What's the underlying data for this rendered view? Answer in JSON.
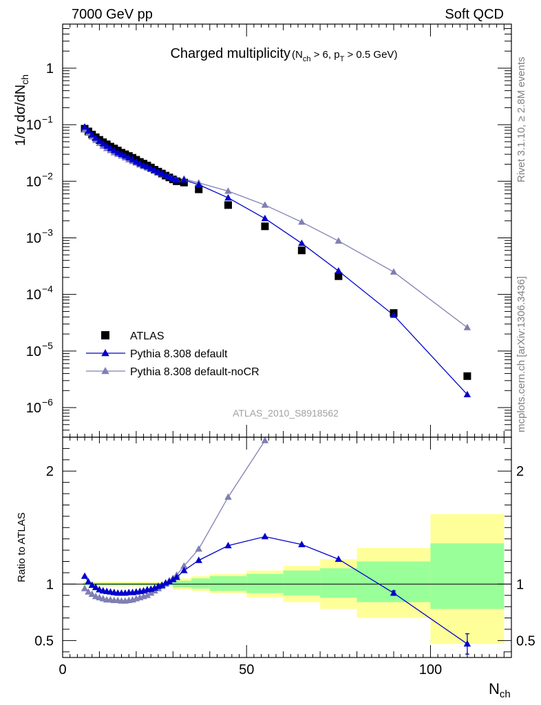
{
  "header": {
    "left": "7000 GeV pp",
    "right": "Soft QCD"
  },
  "side_labels": {
    "top": "Rivet 3.1.10, ≥ 2.8M events",
    "bottom": "mcplots.cern.ch [arXiv:1306.3436]"
  },
  "analysis_id": "ATLAS_2010_S8918562",
  "colors": {
    "atlas": "#000000",
    "default": "#0000cc",
    "nocr": "#7f7fb3",
    "band_inner": "#99ff99",
    "band_outer": "#ffff99"
  },
  "chart_data": [
    {
      "type": "scatter",
      "panel": "main",
      "title": "Charged multiplicity",
      "title_cuts": "(N_ch > 6, p_T > 0.5 GeV)",
      "xlabel": "N_ch",
      "ylabel": "1/σ dσ/dN_ch",
      "xlim": [
        0,
        122
      ],
      "ylim": [
        3e-07,
        6
      ],
      "yscale": "log",
      "x_ticks": [
        0,
        50,
        100
      ],
      "y_ticks": [
        {
          "value": 1e-06,
          "label": "10",
          "exp": "−6"
        },
        {
          "value": 1e-05,
          "label": "10",
          "exp": "−5"
        },
        {
          "value": 0.0001,
          "label": "10",
          "exp": "−4"
        },
        {
          "value": 0.001,
          "label": "10",
          "exp": "−3"
        },
        {
          "value": 0.01,
          "label": "10",
          "exp": "−2"
        },
        {
          "value": 0.1,
          "label": "10",
          "exp": "−1"
        },
        {
          "value": 1,
          "label": "1",
          "exp": ""
        }
      ],
      "legend_position": "bottom-left",
      "series": [
        {
          "name": "ATLAS",
          "marker": "square",
          "x": [
            6,
            7,
            8,
            9,
            10,
            11,
            12,
            13,
            14,
            15,
            16,
            17,
            18,
            19,
            20,
            21,
            22,
            23,
            24,
            25,
            26,
            27,
            28,
            29,
            30,
            31,
            33,
            37,
            45,
            55,
            65,
            75,
            90,
            110
          ],
          "y": [
            0.085,
            0.076,
            0.067,
            0.06,
            0.054,
            0.049,
            0.045,
            0.041,
            0.038,
            0.035,
            0.032,
            0.03,
            0.028,
            0.026,
            0.024,
            0.022,
            0.0205,
            0.019,
            0.0175,
            0.016,
            0.0148,
            0.0137,
            0.0126,
            0.0117,
            0.0108,
            0.01,
            0.0095,
            0.0072,
            0.0038,
            0.0016,
            0.0006,
            0.00021,
            4.7e-05,
            3.6e-06
          ]
        },
        {
          "name": "Pythia 8.308 default",
          "marker": "triangle",
          "x": [
            6,
            7,
            8,
            9,
            10,
            11,
            12,
            13,
            14,
            15,
            16,
            17,
            18,
            19,
            20,
            21,
            22,
            23,
            24,
            25,
            26,
            27,
            28,
            29,
            30,
            31,
            33,
            37,
            45,
            55,
            65,
            75,
            90,
            110
          ],
          "y": [
            0.091,
            0.077,
            0.066,
            0.058,
            0.051,
            0.046,
            0.042,
            0.038,
            0.035,
            0.032,
            0.03,
            0.028,
            0.026,
            0.024,
            0.022,
            0.0205,
            0.019,
            0.018,
            0.0167,
            0.0155,
            0.0145,
            0.0136,
            0.0127,
            0.0118,
            0.0111,
            0.0105,
            0.0106,
            0.0087,
            0.0051,
            0.0022,
            0.0008,
            0.00026,
            4.3e-05,
            1.7e-06
          ]
        },
        {
          "name": "Pythia 8.308 default-noCR",
          "marker": "triangle",
          "x": [
            6,
            7,
            8,
            9,
            10,
            11,
            12,
            13,
            14,
            15,
            16,
            17,
            18,
            19,
            20,
            21,
            22,
            23,
            24,
            25,
            26,
            27,
            28,
            29,
            30,
            31,
            33,
            37,
            45,
            55,
            65,
            75,
            90,
            110
          ],
          "y": [
            0.081,
            0.071,
            0.061,
            0.053,
            0.047,
            0.042,
            0.038,
            0.035,
            0.032,
            0.03,
            0.028,
            0.026,
            0.024,
            0.0225,
            0.021,
            0.0195,
            0.0183,
            0.0172,
            0.0162,
            0.0152,
            0.0143,
            0.0135,
            0.0127,
            0.012,
            0.0113,
            0.0107,
            0.011,
            0.0094,
            0.0067,
            0.0038,
            0.0019,
            0.00088,
            0.00025,
            2.6e-05
          ]
        }
      ]
    },
    {
      "type": "line",
      "panel": "ratio",
      "xlabel": "N_ch",
      "ylabel": "Ratio to ATLAS",
      "xlim": [
        0,
        122
      ],
      "ylim": [
        0.35,
        2.3
      ],
      "x_ticks": [
        0,
        50,
        100
      ],
      "y_ticks": [
        {
          "value": 0.5,
          "label": "0.5"
        },
        {
          "value": 1,
          "label": "1"
        },
        {
          "value": 2,
          "label": "2"
        }
      ],
      "bands": [
        {
          "x0": 5.5,
          "x1": 30,
          "inner": [
            0.99,
            1.01
          ],
          "outer": [
            0.98,
            1.02
          ]
        },
        {
          "x0": 30,
          "x1": 35,
          "inner": [
            0.97,
            1.03
          ],
          "outer": [
            0.95,
            1.05
          ]
        },
        {
          "x0": 35,
          "x1": 40,
          "inner": [
            0.96,
            1.05
          ],
          "outer": [
            0.94,
            1.07
          ]
        },
        {
          "x0": 40,
          "x1": 50,
          "inner": [
            0.94,
            1.07
          ],
          "outer": [
            0.92,
            1.09
          ]
        },
        {
          "x0": 50,
          "x1": 60,
          "inner": [
            0.92,
            1.09
          ],
          "outer": [
            0.88,
            1.12
          ]
        },
        {
          "x0": 60,
          "x1": 70,
          "inner": [
            0.9,
            1.12
          ],
          "outer": [
            0.84,
            1.16
          ]
        },
        {
          "x0": 70,
          "x1": 80,
          "inner": [
            0.88,
            1.14
          ],
          "outer": [
            0.78,
            1.22
          ]
        },
        {
          "x0": 80,
          "x1": 100,
          "inner": [
            0.84,
            1.2
          ],
          "outer": [
            0.7,
            1.32
          ]
        },
        {
          "x0": 100,
          "x1": 120,
          "inner": [
            0.78,
            1.36
          ],
          "outer": [
            0.47,
            1.62
          ]
        }
      ],
      "series": [
        {
          "name": "Pythia 8.308 default",
          "x": [
            6,
            7,
            8,
            9,
            10,
            11,
            12,
            13,
            14,
            15,
            16,
            17,
            18,
            19,
            20,
            21,
            22,
            23,
            24,
            25,
            26,
            27,
            28,
            29,
            30,
            31,
            33,
            37,
            45,
            55,
            65,
            75,
            90,
            110
          ],
          "y": [
            1.07,
            1.02,
            0.99,
            0.97,
            0.95,
            0.94,
            0.935,
            0.93,
            0.925,
            0.92,
            0.92,
            0.92,
            0.925,
            0.925,
            0.93,
            0.935,
            0.94,
            0.95,
            0.955,
            0.965,
            0.98,
            0.99,
            1.01,
            1.02,
            1.04,
            1.06,
            1.12,
            1.21,
            1.34,
            1.42,
            1.35,
            1.22,
            0.92,
            0.47
          ],
          "error_x": [
            90,
            110
          ],
          "error_y": [
            0.02,
            0.09
          ]
        },
        {
          "name": "Pythia 8.308 default-noCR",
          "x": [
            6,
            7,
            8,
            9,
            10,
            11,
            12,
            13,
            14,
            15,
            16,
            17,
            18,
            19,
            20,
            21,
            22,
            23,
            24,
            25,
            26,
            27,
            28,
            29,
            30,
            31,
            33,
            37,
            45,
            55
          ],
          "y": [
            0.96,
            0.93,
            0.91,
            0.89,
            0.88,
            0.87,
            0.86,
            0.86,
            0.855,
            0.855,
            0.85,
            0.85,
            0.855,
            0.86,
            0.87,
            0.88,
            0.89,
            0.9,
            0.92,
            0.94,
            0.96,
            0.98,
            1.0,
            1.03,
            1.05,
            1.08,
            1.16,
            1.31,
            1.77,
            2.27
          ]
        }
      ]
    }
  ]
}
